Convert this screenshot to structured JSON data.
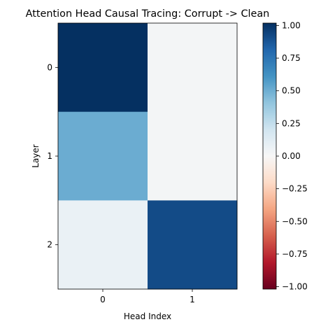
{
  "chart_data": {
    "type": "heatmap",
    "title": "Attention Head Causal Tracing: Corrupt -> Clean",
    "xlabel": "Head Index",
    "ylabel": "Layer",
    "x_categories": [
      "0",
      "1"
    ],
    "y_categories": [
      "0",
      "1",
      "2"
    ],
    "values": [
      [
        1.0,
        0.02
      ],
      [
        0.5,
        0.02
      ],
      [
        0.07,
        0.9
      ]
    ],
    "colormap": "RdBu",
    "vmin": -1.0,
    "vmax": 1.0,
    "colorbar": {
      "ticks": [
        1.0,
        0.75,
        0.5,
        0.25,
        0.0,
        -0.25,
        -0.5,
        -0.75,
        -1.0
      ],
      "tick_labels": [
        "1.00",
        "0.75",
        "0.50",
        "0.25",
        "0.00",
        "−0.25",
        "−0.50",
        "−0.75",
        "−1.00"
      ]
    }
  }
}
